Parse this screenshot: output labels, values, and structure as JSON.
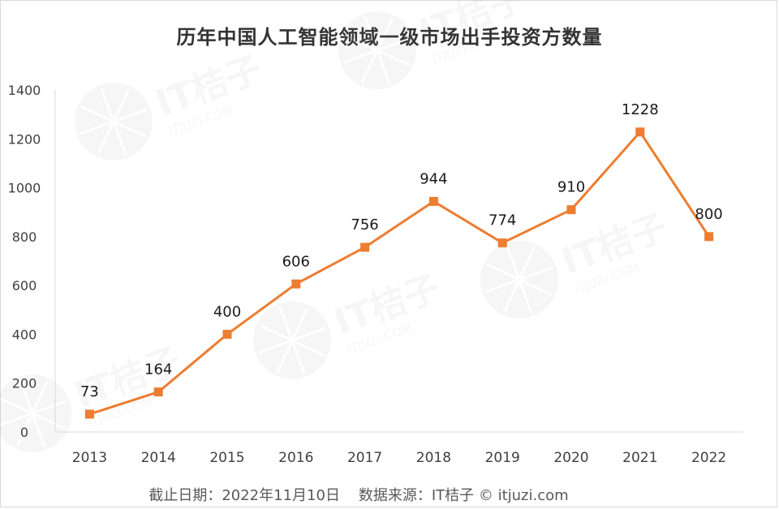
{
  "chart_data": {
    "type": "line",
    "title": "历年中国人工智能领域一级市场出手投资方数量",
    "categories": [
      "2013",
      "2014",
      "2015",
      "2016",
      "2017",
      "2018",
      "2019",
      "2020",
      "2021",
      "2022"
    ],
    "values": [
      73,
      164,
      400,
      606,
      756,
      944,
      774,
      910,
      1228,
      800
    ],
    "data_labels": [
      "73",
      "164",
      "400",
      "606",
      "756",
      "944",
      "774",
      "910",
      "1228",
      "800"
    ],
    "ylim": [
      0,
      1400
    ],
    "yticks": [
      "0",
      "200",
      "400",
      "600",
      "800",
      "1000",
      "1200",
      "1400"
    ],
    "xlabel": "",
    "ylabel": "",
    "grid": false,
    "series_color": "#ED7D31"
  },
  "footer": "截止日期：2022年11月10日    数据来源：IT桔子 © itjuzi.com",
  "watermark": {
    "brand": "IT桔子",
    "domain": "ITJUZI.COM"
  }
}
